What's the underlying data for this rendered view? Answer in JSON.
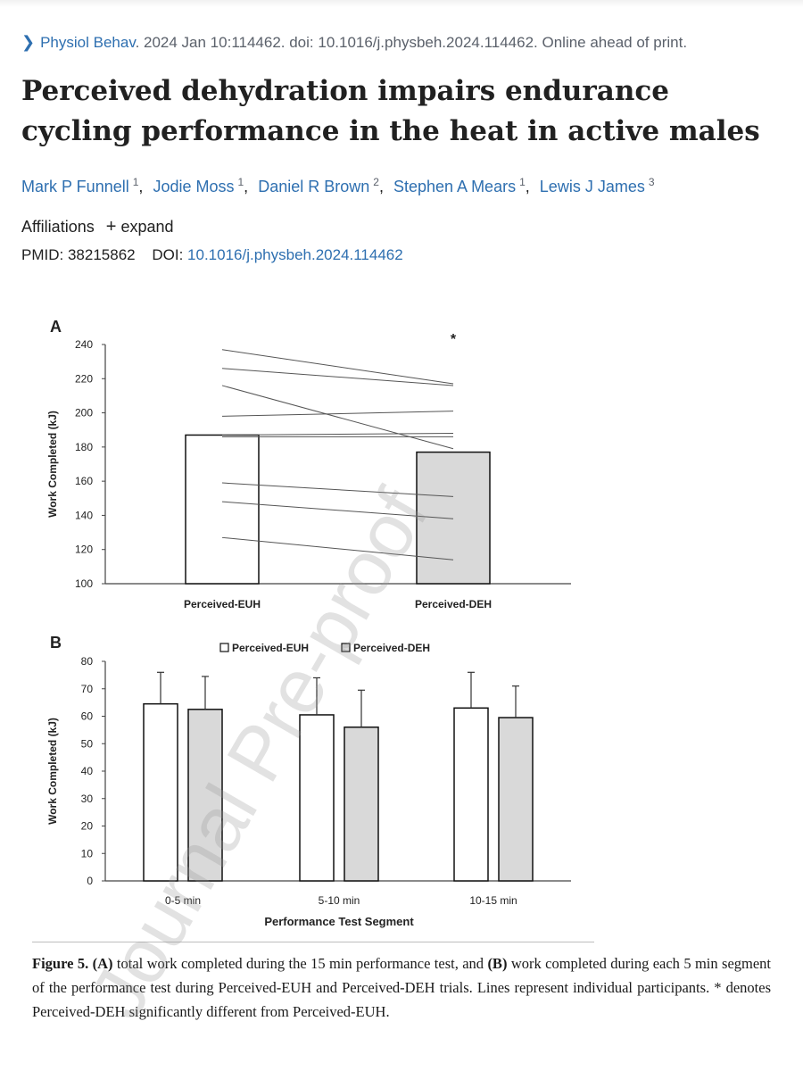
{
  "citation": {
    "journal": "Physiol Behav",
    "rest": ". 2024 Jan 10:114462. doi: 10.1016/j.physbeh.2024.114462. Online ahead of print."
  },
  "title": "Perceived dehydration impairs endurance cycling performance in the heat in active males",
  "authors": [
    {
      "name": "Mark P Funnell",
      "aff": "1"
    },
    {
      "name": "Jodie Moss",
      "aff": "1"
    },
    {
      "name": "Daniel R Brown",
      "aff": "2"
    },
    {
      "name": "Stephen A Mears",
      "aff": "1"
    },
    {
      "name": "Lewis J James",
      "aff": "3"
    }
  ],
  "affiliations": {
    "label": "Affiliations",
    "expand": "expand"
  },
  "ids": {
    "pmid_label": "PMID:",
    "pmid": "38215862",
    "doi_label": "DOI:",
    "doi": "10.1016/j.physbeh.2024.114462"
  },
  "chart_data": [
    {
      "type": "bar",
      "panel": "A",
      "categories": [
        "Perceived-EUH",
        "Perceived-DEH"
      ],
      "values": [
        187,
        177
      ],
      "ylabel": "Work Completed (kJ)",
      "ylim": [
        100,
        240
      ],
      "yticks": [
        100,
        120,
        140,
        160,
        180,
        200,
        220,
        240
      ],
      "annotation": "*",
      "individual_lines": [
        [
          237,
          217
        ],
        [
          226,
          216
        ],
        [
          216,
          179
        ],
        [
          198,
          201
        ],
        [
          187,
          188
        ],
        [
          186,
          186
        ],
        [
          159,
          151
        ],
        [
          148,
          138
        ],
        [
          127,
          114
        ]
      ],
      "colors": {
        "Perceived-EUH": "#ffffff",
        "Perceived-DEH": "#d9d9d9"
      }
    },
    {
      "type": "bar",
      "panel": "B",
      "categories": [
        "0-5 min",
        "5-10 min",
        "10-15 min"
      ],
      "xlabel": "Performance Test Segment",
      "ylabel": "Work Completed (kJ)",
      "ylim": [
        0,
        80
      ],
      "yticks": [
        0,
        10,
        20,
        30,
        40,
        50,
        60,
        70,
        80
      ],
      "legend_position": "top",
      "series": [
        {
          "name": "Perceived-EUH",
          "values": [
            64.5,
            60.5,
            63
          ],
          "error": [
            11.5,
            13.5,
            13
          ],
          "color": "#ffffff"
        },
        {
          "name": "Perceived-DEH",
          "values": [
            62.5,
            56,
            59.5
          ],
          "error": [
            12,
            13.5,
            11.5
          ],
          "color": "#d9d9d9"
        }
      ]
    }
  ],
  "caption": {
    "label": "Figure 5.",
    "a_tag": "(A)",
    "a_text": " total work completed during the 15 min performance test, and ",
    "b_tag": "(B)",
    "b_text": " work completed during each 5 min segment of the performance test during Perceived-EUH and Perceived-DEH trials. Lines represent individual participants. * denotes Perceived-DEH significantly different from Perceived-EUH."
  },
  "watermark": "Journal Pre-proof"
}
